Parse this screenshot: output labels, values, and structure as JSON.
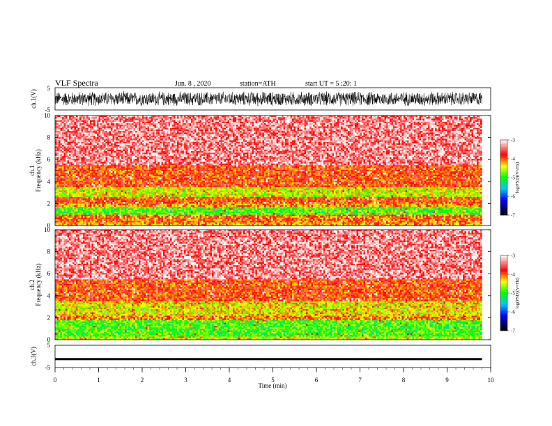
{
  "header": {
    "title": "VLF Spectra",
    "date": "Jun. 8 , 2020",
    "station": "station=ATH",
    "start": "start UT =  5 :20: 1"
  },
  "colors": {
    "scale": [
      "#000000",
      "#0000ff",
      "#00c8ff",
      "#00ff00",
      "#ffff00",
      "#ff0000",
      "#ffffff"
    ],
    "axis": "#000000"
  },
  "chart_data": [
    {
      "type": "line",
      "panel": "ch1-waveform",
      "ylabel": "ch.1(V)",
      "ylim": [
        -5,
        5
      ],
      "yticks": [
        "5",
        "-5"
      ],
      "x_range_min": [
        0,
        9.8
      ],
      "description_values": {
        "amplitude_range_V": [
          -3.5,
          3.5
        ]
      }
    },
    {
      "type": "heatmap",
      "panel": "ch1-spectrogram",
      "ylabel_top": "ch.1",
      "ylabel": "Frequency (kHz)",
      "ylim": [
        0,
        10
      ],
      "yticks": [
        "0",
        "2",
        "4",
        "6",
        "8",
        "10"
      ],
      "x_range_min": [
        0,
        9.8
      ],
      "colorbar": {
        "label": "log(PSD)(V²/Hz)",
        "ticks": [
          "-3",
          "-4",
          "-5",
          "-6",
          "-7"
        ],
        "range": [
          -7,
          -3
        ]
      },
      "bands_kHz": [
        {
          "from": 0.0,
          "to": 0.3,
          "level": -4.2
        },
        {
          "from": 0.3,
          "to": 1.0,
          "level": -4.0
        },
        {
          "from": 1.0,
          "to": 1.7,
          "level": -4.9
        },
        {
          "from": 1.7,
          "to": 2.0,
          "level": -4.2
        },
        {
          "from": 2.0,
          "to": 2.6,
          "level": -3.9
        },
        {
          "from": 2.6,
          "to": 3.5,
          "level": -4.5
        },
        {
          "from": 3.5,
          "to": 5.5,
          "level": -3.9
        },
        {
          "from": 5.5,
          "to": 10.0,
          "level": -3.4
        }
      ]
    },
    {
      "type": "heatmap",
      "panel": "ch2-spectrogram",
      "ylabel_top": "ch.2",
      "ylabel": "Frequency (kHz)",
      "ylim": [
        0,
        10
      ],
      "yticks": [
        "0",
        "2",
        "4",
        "6",
        "8",
        "10"
      ],
      "x_range_min": [
        0,
        9.8
      ],
      "colorbar": {
        "label": "log(PSD)(V²/Hz)",
        "ticks": [
          "-3",
          "-4",
          "-5",
          "-6",
          "-7"
        ],
        "range": [
          -7,
          -3
        ]
      },
      "bands_kHz": [
        {
          "from": 0.0,
          "to": 0.3,
          "level": -4.5
        },
        {
          "from": 0.3,
          "to": 1.8,
          "level": -4.9
        },
        {
          "from": 1.8,
          "to": 2.2,
          "level": -4.1
        },
        {
          "from": 2.2,
          "to": 3.5,
          "level": -4.4
        },
        {
          "from": 3.5,
          "to": 5.5,
          "level": -3.9
        },
        {
          "from": 5.5,
          "to": 10.0,
          "level": -3.4
        }
      ]
    },
    {
      "type": "line",
      "panel": "ch3-waveform",
      "ylabel": "ch.3(V)",
      "ylim": [
        -5,
        5
      ],
      "yticks": [
        "5",
        "-5"
      ],
      "x_range_min": [
        0,
        9.8
      ],
      "description_values": {
        "amplitude_range_V": [
          -0.3,
          0.3
        ],
        "offset_V": -1.2
      }
    }
  ],
  "xaxis": {
    "label": "Time (min)",
    "ticks": [
      "0",
      "1",
      "2",
      "3",
      "4",
      "5",
      "6",
      "7",
      "8",
      "9",
      "10"
    ],
    "range": [
      0,
      10
    ]
  }
}
